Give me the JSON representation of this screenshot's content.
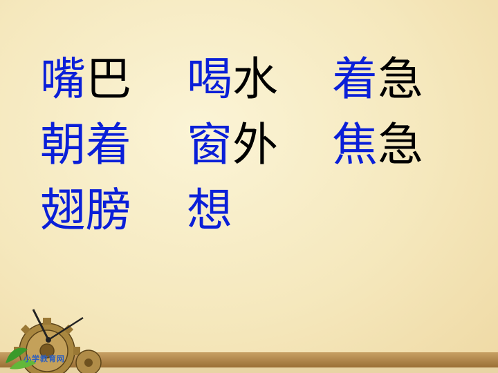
{
  "rows": [
    [
      {
        "blue": "嘴",
        "black": "巴"
      },
      {
        "blue": "喝",
        "black": "水"
      },
      {
        "blue": "着",
        "black": "急"
      }
    ],
    [
      {
        "blue": "朝着",
        "black": ""
      },
      {
        "blue": "窗",
        "black": "外"
      },
      {
        "blue": "焦",
        "black": "急"
      }
    ],
    [
      {
        "blue": "翅膀",
        "black": ""
      },
      {
        "blue": "想",
        "black": ""
      }
    ]
  ],
  "logo": {
    "site": "小学教育网"
  },
  "colors": {
    "highlight": "#0a1fd8",
    "text": "#000000",
    "bar": "#b58a4c"
  },
  "icons": [
    "clock-gear-icon",
    "leaf-icon"
  ]
}
